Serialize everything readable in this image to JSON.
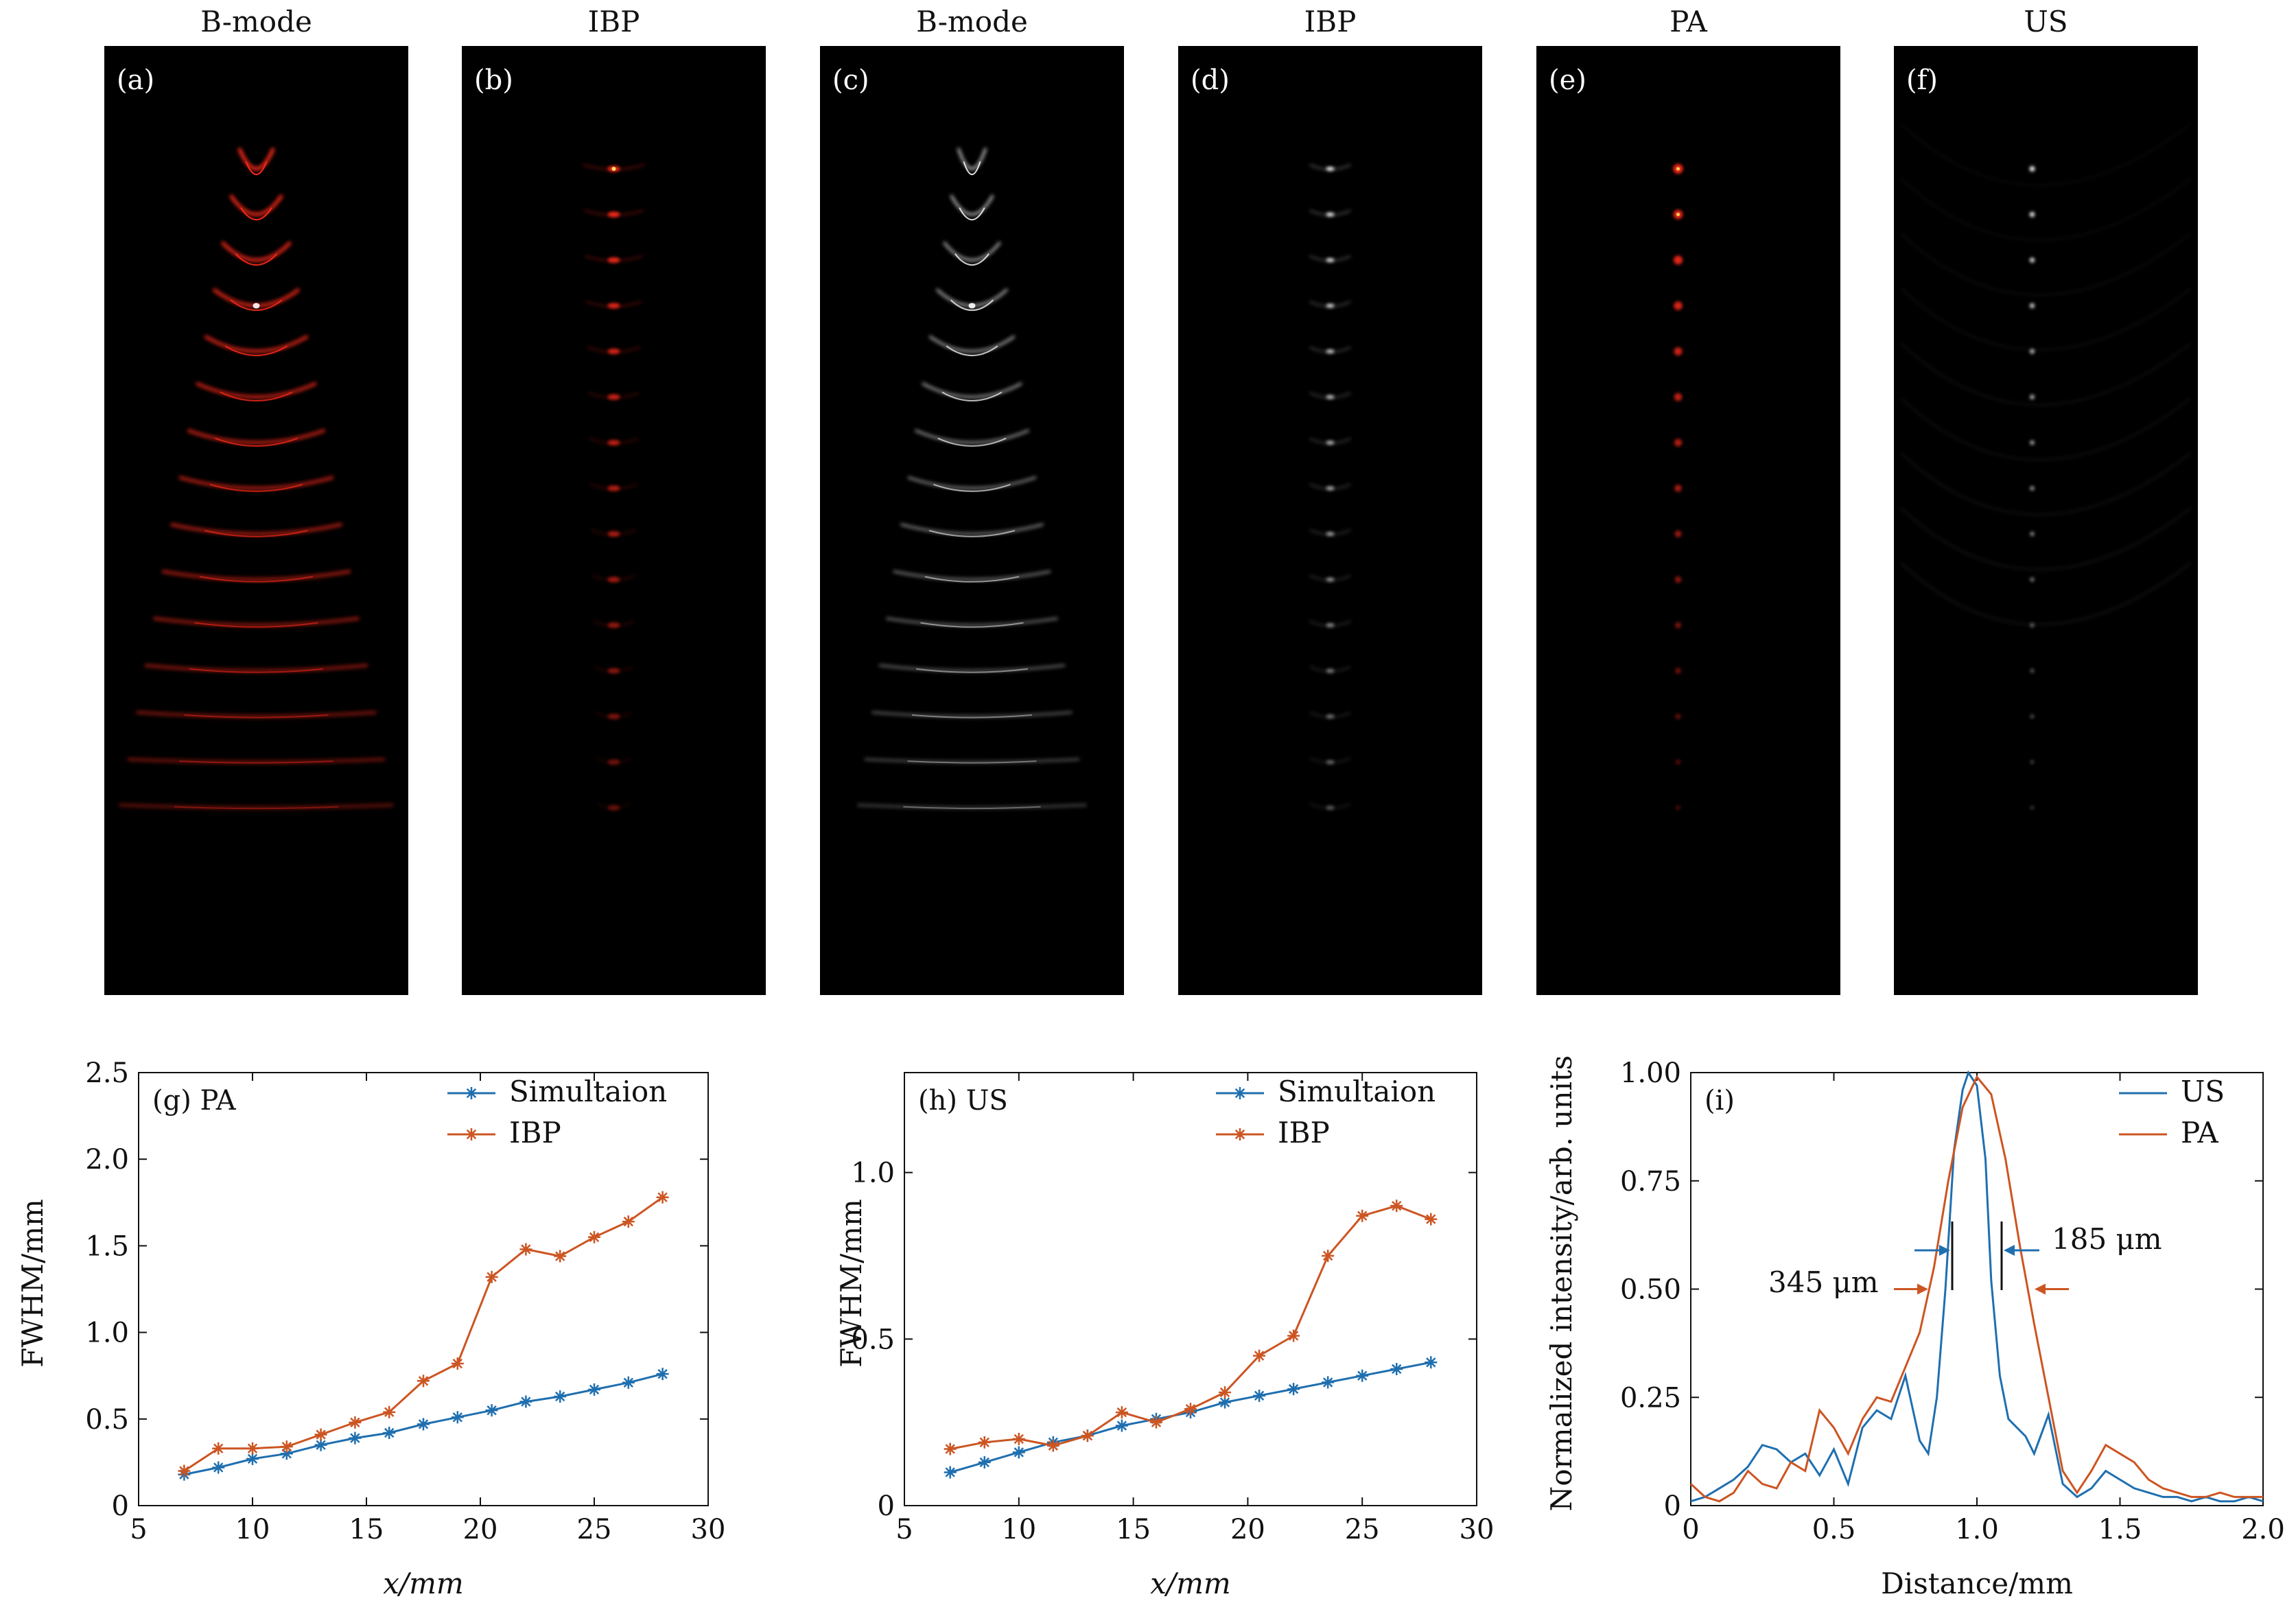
{
  "colors": {
    "simulation": "#1f6faf",
    "ibp": "#cc5522",
    "us": "#1f6faf",
    "pa": "#cc5522",
    "panel_bg": "#000000",
    "red_glow": "#ff2a1a",
    "gray_glow": "#e6e6e6"
  },
  "panels": [
    {
      "id": "a",
      "title": "B-mode",
      "label": "(a)",
      "style": "arc-red",
      "count": 15
    },
    {
      "id": "b",
      "title": "IBP",
      "label": "(b)",
      "style": "dot-red",
      "count": 15
    },
    {
      "id": "c",
      "title": "B-mode",
      "label": "(c)",
      "style": "arc-gray",
      "count": 15
    },
    {
      "id": "d",
      "title": "IBP",
      "label": "(d)",
      "style": "dot-gray",
      "count": 15
    },
    {
      "id": "e",
      "title": "PA",
      "label": "(e)",
      "style": "spot-red",
      "count": 15
    },
    {
      "id": "f",
      "title": "US",
      "label": "(f)",
      "style": "spot-gray",
      "count": 15
    }
  ],
  "chart_data": [
    {
      "id": "g",
      "type": "line",
      "panel_label": "(g)  PA",
      "xlabel": "x/mm",
      "ylabel": "FWHM/mm",
      "xlim": [
        5,
        30
      ],
      "ylim": [
        0,
        2.5
      ],
      "xticks": [
        5,
        10,
        15,
        20,
        25,
        30
      ],
      "yticks": [
        0,
        0.5,
        1.0,
        1.5,
        2.0,
        2.5
      ],
      "ytick_labels": [
        "0",
        "0.5",
        "1.0",
        "1.5",
        "2.0",
        "2.5"
      ],
      "legend_position": "top-right",
      "x": [
        7,
        8.5,
        10,
        11.5,
        13,
        14.5,
        16,
        17.5,
        19,
        20.5,
        22,
        23.5,
        25,
        26.5,
        28
      ],
      "series": [
        {
          "name": "Simultaion",
          "color_key": "simulation",
          "values": [
            0.18,
            0.22,
            0.27,
            0.3,
            0.35,
            0.39,
            0.42,
            0.47,
            0.51,
            0.55,
            0.6,
            0.63,
            0.67,
            0.71,
            0.76
          ]
        },
        {
          "name": "IBP",
          "color_key": "ibp",
          "values": [
            0.2,
            0.33,
            0.33,
            0.34,
            0.41,
            0.48,
            0.54,
            0.72,
            0.82,
            1.32,
            1.48,
            1.44,
            1.55,
            1.64,
            1.78
          ]
        }
      ]
    },
    {
      "id": "h",
      "type": "line",
      "panel_label": "(h)  US",
      "xlabel": "x/mm",
      "ylabel": "FWHM/mm",
      "xlim": [
        5,
        30
      ],
      "ylim": [
        0,
        1.3
      ],
      "xticks": [
        5,
        10,
        15,
        20,
        25,
        30
      ],
      "yticks": [
        0,
        0.5,
        1.0
      ],
      "ytick_labels": [
        "0",
        "0.5",
        "1.0"
      ],
      "legend_position": "top-right",
      "x": [
        7,
        8.5,
        10,
        11.5,
        13,
        14.5,
        16,
        17.5,
        19,
        20.5,
        22,
        23.5,
        25,
        26.5,
        28
      ],
      "series": [
        {
          "name": "Simultaion",
          "color_key": "simulation",
          "values": [
            0.1,
            0.13,
            0.16,
            0.19,
            0.21,
            0.24,
            0.26,
            0.28,
            0.31,
            0.33,
            0.35,
            0.37,
            0.39,
            0.41,
            0.43
          ]
        },
        {
          "name": "IBP",
          "color_key": "ibp",
          "values": [
            0.17,
            0.19,
            0.2,
            0.18,
            0.21,
            0.28,
            0.25,
            0.29,
            0.34,
            0.45,
            0.51,
            0.75,
            0.87,
            0.9,
            0.86
          ]
        }
      ]
    },
    {
      "id": "i",
      "type": "line",
      "panel_label": "(i)",
      "xlabel": "Distance/mm",
      "ylabel": "Normalized intensity/arb. units",
      "xlim": [
        0,
        2.0
      ],
      "ylim": [
        0,
        1.0
      ],
      "xticks": [
        0,
        0.5,
        1.0,
        1.5,
        2.0
      ],
      "xtick_labels": [
        "0",
        "0.5",
        "1.0",
        "1.5",
        "2.0"
      ],
      "yticks": [
        0,
        0.25,
        0.5,
        0.75,
        1.0
      ],
      "ytick_labels": [
        "0",
        "0.25",
        "0.50",
        "0.75",
        "1.00"
      ],
      "legend_position": "top-right",
      "annotations": {
        "us_width": "185 μm",
        "pa_width": "345 μm"
      },
      "series": [
        {
          "name": "US",
          "color_key": "us",
          "x": [
            0,
            0.05,
            0.1,
            0.15,
            0.2,
            0.25,
            0.3,
            0.35,
            0.4,
            0.45,
            0.5,
            0.55,
            0.6,
            0.65,
            0.7,
            0.75,
            0.8,
            0.83,
            0.86,
            0.89,
            0.92,
            0.95,
            0.97,
            1.0,
            1.03,
            1.05,
            1.08,
            1.11,
            1.14,
            1.17,
            1.2,
            1.25,
            1.3,
            1.35,
            1.4,
            1.45,
            1.5,
            1.55,
            1.6,
            1.65,
            1.7,
            1.75,
            1.8,
            1.85,
            1.9,
            1.95,
            2.0
          ],
          "values": [
            0.01,
            0.02,
            0.04,
            0.06,
            0.09,
            0.14,
            0.13,
            0.1,
            0.12,
            0.07,
            0.13,
            0.05,
            0.18,
            0.22,
            0.2,
            0.3,
            0.15,
            0.12,
            0.25,
            0.5,
            0.82,
            0.96,
            1.0,
            0.97,
            0.8,
            0.52,
            0.3,
            0.2,
            0.18,
            0.16,
            0.12,
            0.21,
            0.05,
            0.02,
            0.04,
            0.08,
            0.06,
            0.04,
            0.03,
            0.02,
            0.02,
            0.01,
            0.02,
            0.01,
            0.01,
            0.02,
            0.01
          ]
        },
        {
          "name": "PA",
          "color_key": "pa",
          "x": [
            0,
            0.05,
            0.1,
            0.15,
            0.2,
            0.25,
            0.3,
            0.35,
            0.4,
            0.45,
            0.5,
            0.55,
            0.6,
            0.65,
            0.7,
            0.75,
            0.8,
            0.85,
            0.9,
            0.95,
            1.0,
            1.05,
            1.1,
            1.15,
            1.2,
            1.25,
            1.3,
            1.35,
            1.4,
            1.45,
            1.5,
            1.55,
            1.6,
            1.65,
            1.7,
            1.75,
            1.8,
            1.85,
            1.9,
            1.95,
            2.0
          ],
          "values": [
            0.05,
            0.02,
            0.01,
            0.03,
            0.08,
            0.05,
            0.04,
            0.1,
            0.08,
            0.22,
            0.18,
            0.12,
            0.2,
            0.25,
            0.24,
            0.32,
            0.4,
            0.55,
            0.75,
            0.92,
            0.99,
            0.95,
            0.8,
            0.6,
            0.42,
            0.25,
            0.08,
            0.03,
            0.08,
            0.14,
            0.12,
            0.1,
            0.06,
            0.04,
            0.03,
            0.02,
            0.02,
            0.03,
            0.02,
            0.02,
            0.02
          ]
        }
      ]
    }
  ]
}
